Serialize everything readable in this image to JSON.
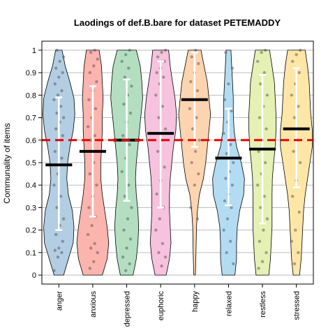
{
  "chart_data": {
    "type": "violin",
    "title": "Laodings of def.B.bare for dataset PETEMADDY",
    "xlabel": "",
    "ylabel": "Communality of items",
    "ylim": [
      -0.04,
      1.04
    ],
    "yticks": [
      0,
      0.1,
      0.2,
      0.3,
      0.4,
      0.5,
      0.6,
      0.7,
      0.8,
      0.9,
      1
    ],
    "ytick_labels": [
      "0",
      "0.1",
      "0.2",
      "0.3",
      "0.4",
      "0.5",
      "0.6",
      "0.7",
      "0.8",
      "0.9",
      "1"
    ],
    "grid": true,
    "reference_line": {
      "value": 0.6,
      "color": "#ee0000",
      "style": "dashed"
    },
    "categories": [
      "anger",
      "anxious",
      "depressed",
      "euphoric",
      "happy",
      "relaxed",
      "restless",
      "stressed"
    ],
    "colors": [
      "#b3cde3",
      "#fbb4ae",
      "#b3dfc0",
      "#f6c2de",
      "#fdd4b0",
      "#b3dcf3",
      "#e4f0b4",
      "#fde6a6"
    ],
    "means": [
      0.49,
      0.55,
      0.6,
      0.63,
      0.78,
      0.52,
      0.56,
      0.65
    ],
    "sd_low": [
      0.2,
      0.26,
      0.33,
      0.3,
      0.57,
      0.31,
      0.23,
      0.39
    ],
    "sd_high": [
      0.79,
      0.84,
      0.87,
      0.95,
      0.99,
      0.74,
      0.89,
      0.92
    ],
    "violin_width": [
      [
        0.3,
        0.6,
        0.9,
        0.95,
        0.85,
        0.6,
        0.5,
        0.55,
        0.7,
        0.9,
        1.0,
        0.95,
        0.7,
        0.4,
        0.2
      ],
      [
        0.6,
        0.9,
        1.0,
        0.9,
        0.75,
        0.6,
        0.5,
        0.5,
        0.55,
        0.6,
        0.6,
        0.65,
        0.6,
        0.55,
        0.4
      ],
      [
        0.4,
        0.6,
        0.7,
        0.75,
        0.7,
        0.6,
        0.55,
        0.6,
        0.7,
        0.8,
        0.9,
        1.0,
        0.95,
        0.85,
        0.6
      ],
      [
        0.35,
        0.55,
        0.65,
        0.6,
        0.55,
        0.55,
        0.6,
        0.7,
        0.8,
        0.95,
        1.0,
        0.9,
        0.75,
        0.6,
        0.5
      ],
      [
        0.05,
        0.08,
        0.1,
        0.12,
        0.18,
        0.3,
        0.55,
        0.7,
        0.8,
        0.9,
        1.0,
        0.9,
        0.8,
        0.6,
        0.4
      ],
      [
        0.4,
        0.5,
        0.5,
        0.55,
        0.7,
        0.95,
        1.0,
        0.8,
        0.5,
        0.35,
        0.3,
        0.3,
        0.25,
        0.2,
        0.15
      ],
      [
        0.4,
        0.5,
        0.55,
        0.6,
        0.6,
        0.6,
        0.62,
        0.7,
        0.8,
        0.85,
        0.85,
        0.8,
        0.75,
        0.6,
        0.45
      ],
      [
        0.2,
        0.3,
        0.35,
        0.4,
        0.45,
        0.55,
        0.7,
        0.85,
        1.0,
        1.0,
        0.9,
        0.85,
        0.8,
        0.7,
        0.55
      ]
    ],
    "points": [
      [
        0.02,
        0.08,
        0.1,
        0.11,
        0.12,
        0.15,
        0.18,
        0.22,
        0.25,
        0.3,
        0.35,
        0.4,
        0.45,
        0.52,
        0.55,
        0.6,
        0.62,
        0.65,
        0.68,
        0.7,
        0.72,
        0.75,
        0.78,
        0.8,
        0.82,
        0.85,
        0.88,
        0.9,
        0.92,
        0.95,
        0.97,
        1.0
      ],
      [
        0.03,
        0.06,
        0.1,
        0.12,
        0.14,
        0.18,
        0.22,
        0.26,
        0.3,
        0.35,
        0.4,
        0.45,
        0.5,
        0.55,
        0.6,
        0.62,
        0.66,
        0.7,
        0.74,
        0.78,
        0.82,
        0.86,
        0.9,
        0.93,
        0.96,
        0.99,
        1.0
      ],
      [
        0.02,
        0.05,
        0.08,
        0.12,
        0.16,
        0.2,
        0.25,
        0.3,
        0.35,
        0.4,
        0.46,
        0.52,
        0.58,
        0.62,
        0.68,
        0.72,
        0.76,
        0.8,
        0.84,
        0.88,
        0.92,
        0.95,
        0.98,
        1.0
      ],
      [
        0.04,
        0.08,
        0.1,
        0.14,
        0.2,
        0.25,
        0.3,
        0.36,
        0.42,
        0.48,
        0.55,
        0.6,
        0.65,
        0.7,
        0.75,
        0.8,
        0.85,
        0.88,
        0.9,
        0.92,
        0.95,
        0.97,
        0.99,
        1.0
      ],
      [
        0.25,
        0.3,
        0.4,
        0.45,
        0.5,
        0.55,
        0.6,
        0.65,
        0.7,
        0.74,
        0.78,
        0.82,
        0.86,
        0.9,
        0.94,
        0.97,
        1.0
      ],
      [
        0.05,
        0.1,
        0.15,
        0.2,
        0.25,
        0.3,
        0.33,
        0.36,
        0.4,
        0.43,
        0.46,
        0.5,
        0.54,
        0.58,
        0.63,
        0.68,
        0.73,
        0.78,
        0.85,
        0.92,
        0.99
      ],
      [
        0.03,
        0.06,
        0.1,
        0.15,
        0.2,
        0.25,
        0.3,
        0.35,
        0.4,
        0.45,
        0.5,
        0.55,
        0.6,
        0.65,
        0.7,
        0.75,
        0.8,
        0.85,
        0.9,
        0.95,
        0.99,
        1.0
      ],
      [
        0.05,
        0.1,
        0.15,
        0.2,
        0.28,
        0.35,
        0.42,
        0.5,
        0.55,
        0.6,
        0.65,
        0.7,
        0.75,
        0.8,
        0.85,
        0.9,
        0.95,
        0.98,
        1.0
      ]
    ]
  }
}
